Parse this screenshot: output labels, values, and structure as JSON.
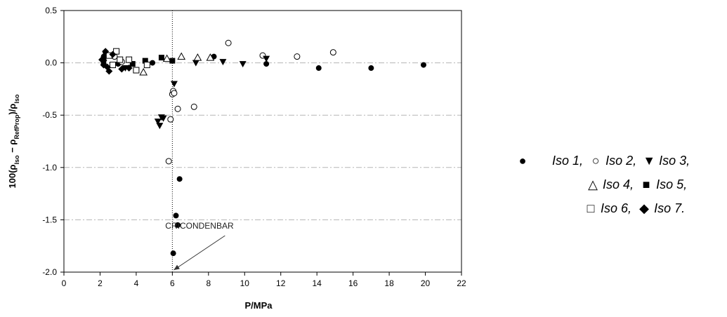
{
  "chart_data": {
    "type": "scatter",
    "title": "",
    "xlabel": "P/MPa",
    "ylabel": "100(ρIso − ρRefProp)/ρIso",
    "xlim": [
      0,
      22
    ],
    "ylim": [
      -2.0,
      0.5
    ],
    "xticks": [
      "0",
      "2",
      "4",
      "6",
      "8",
      "10",
      "12",
      "14",
      "16",
      "18",
      "20",
      "22"
    ],
    "yticks": [
      "0.5",
      "0.0",
      "-0.5",
      "-1.0",
      "-1.5",
      "-2.0"
    ],
    "grid": "horizontal dash-dot",
    "legend_position": "right",
    "annotation": {
      "text": "CRICONDENBAR",
      "x": 6.0,
      "y": -2.0
    },
    "vertical_line_x": 6.0,
    "series": [
      {
        "name": "Iso 1",
        "marker": "filled-circle",
        "points": [
          [
            2.2,
            0.06
          ],
          [
            2.2,
            0.03
          ],
          [
            2.2,
            -0.01
          ],
          [
            2.3,
            0.1
          ],
          [
            3.0,
            -0.01
          ],
          [
            4.9,
            0.0
          ],
          [
            6.05,
            -1.82
          ],
          [
            6.2,
            -1.46
          ],
          [
            6.3,
            -1.55
          ],
          [
            6.4,
            -1.11
          ],
          [
            8.3,
            0.06
          ],
          [
            11.2,
            -0.01
          ],
          [
            14.1,
            -0.05
          ],
          [
            17.0,
            -0.05
          ],
          [
            19.9,
            -0.02
          ]
        ]
      },
      {
        "name": "Iso 2",
        "marker": "open-circle",
        "points": [
          [
            2.8,
            0.06
          ],
          [
            3.2,
            0.01
          ],
          [
            5.8,
            -0.94
          ],
          [
            5.9,
            -0.54
          ],
          [
            6.0,
            -0.3
          ],
          [
            6.05,
            -0.27
          ],
          [
            6.1,
            -0.29
          ],
          [
            6.3,
            -0.44
          ],
          [
            7.2,
            -0.42
          ],
          [
            9.1,
            0.19
          ],
          [
            11.0,
            0.07
          ],
          [
            12.9,
            0.06
          ],
          [
            14.9,
            0.1
          ]
        ]
      },
      {
        "name": "Iso 3",
        "marker": "filled-triangle-down",
        "points": [
          [
            2.2,
            0.0
          ],
          [
            3.4,
            -0.05
          ],
          [
            5.2,
            -0.56
          ],
          [
            5.3,
            -0.6
          ],
          [
            5.4,
            -0.52
          ],
          [
            5.5,
            -0.53
          ],
          [
            6.1,
            -0.2
          ],
          [
            7.3,
            0.0
          ],
          [
            8.8,
            0.01
          ],
          [
            9.9,
            -0.01
          ],
          [
            11.2,
            0.04
          ]
        ]
      },
      {
        "name": "Iso 4",
        "marker": "open-triangle",
        "points": [
          [
            4.4,
            -0.09
          ],
          [
            5.7,
            0.04
          ],
          [
            6.5,
            0.06
          ],
          [
            7.4,
            0.05
          ],
          [
            8.1,
            0.05
          ]
        ]
      },
      {
        "name": "Iso 5",
        "marker": "filled-square",
        "points": [
          [
            3.8,
            -0.01
          ],
          [
            4.5,
            0.02
          ],
          [
            5.4,
            0.05
          ],
          [
            6.0,
            0.02
          ]
        ]
      },
      {
        "name": "Iso 6",
        "marker": "open-square",
        "points": [
          [
            2.5,
            0.07
          ],
          [
            2.7,
            -0.02
          ],
          [
            2.9,
            0.11
          ],
          [
            3.1,
            0.03
          ],
          [
            3.6,
            0.03
          ],
          [
            4.0,
            -0.07
          ],
          [
            4.6,
            -0.02
          ]
        ]
      },
      {
        "name": "Iso 7",
        "marker": "filled-diamond",
        "points": [
          [
            2.1,
            0.03
          ],
          [
            2.2,
            -0.02
          ],
          [
            2.3,
            0.11
          ],
          [
            2.4,
            -0.04
          ],
          [
            2.5,
            -0.08
          ],
          [
            2.7,
            0.08
          ],
          [
            3.2,
            -0.06
          ],
          [
            3.6,
            -0.05
          ]
        ]
      }
    ]
  },
  "legend": {
    "entries": [
      {
        "label": "Iso 1,",
        "symbol": "●"
      },
      {
        "label": "Iso 2,",
        "symbol": "○"
      },
      {
        "label": "Iso 3,",
        "symbol": "▼"
      },
      {
        "label": "Iso 4,",
        "symbol": "△"
      },
      {
        "label": "Iso 5,",
        "symbol": "■"
      },
      {
        "label": "Iso 6,",
        "symbol": "□"
      },
      {
        "label": "Iso 7.",
        "symbol": "◆"
      }
    ]
  }
}
